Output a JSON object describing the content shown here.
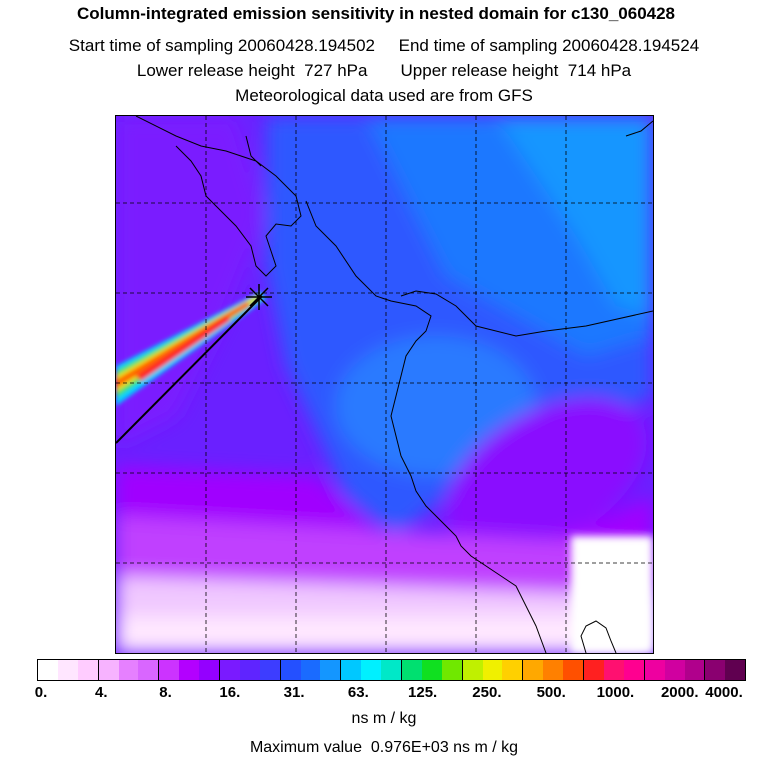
{
  "header": {
    "title": "Column-integrated emission sensitivity in nested domain for c130_060428",
    "sampling_line": "Start time of sampling 20060428.194502     End time of sampling 20060428.194524",
    "height_line": "Lower release height  727 hPa       Upper release height  714 hPa",
    "met_line": "Meteorological data used are from GFS"
  },
  "colorbar": {
    "colors": [
      "#ffffff",
      "#ffe6ff",
      "#ffccff",
      "#f7b3ff",
      "#e680ff",
      "#d966ff",
      "#cc33ff",
      "#b300ff",
      "#9400ff",
      "#7a1aff",
      "#5f24ff",
      "#3d3dff",
      "#2450ff",
      "#1a6bff",
      "#1496ff",
      "#00c8ff",
      "#00f0ff",
      "#00e8c8",
      "#00e070",
      "#10e020",
      "#70e800",
      "#c0f000",
      "#f0f000",
      "#ffd000",
      "#ffa800",
      "#ff8000",
      "#ff5000",
      "#ff2020",
      "#ff1070",
      "#ff0090",
      "#ee00a0",
      "#d000a0",
      "#b0008c",
      "#8a0070",
      "#600050"
    ],
    "tick_labels": [
      "0.",
      "4.",
      "8.",
      "16.",
      "31.",
      "63.",
      "125.",
      "250.",
      "500.",
      "1000.",
      "2000.",
      "4000."
    ],
    "units": "ns m / kg",
    "max_label": "Maximum value  0.976E+03 ns m / kg"
  },
  "map": {
    "background_color": "#7a1aff",
    "release_marker": "cross"
  }
}
